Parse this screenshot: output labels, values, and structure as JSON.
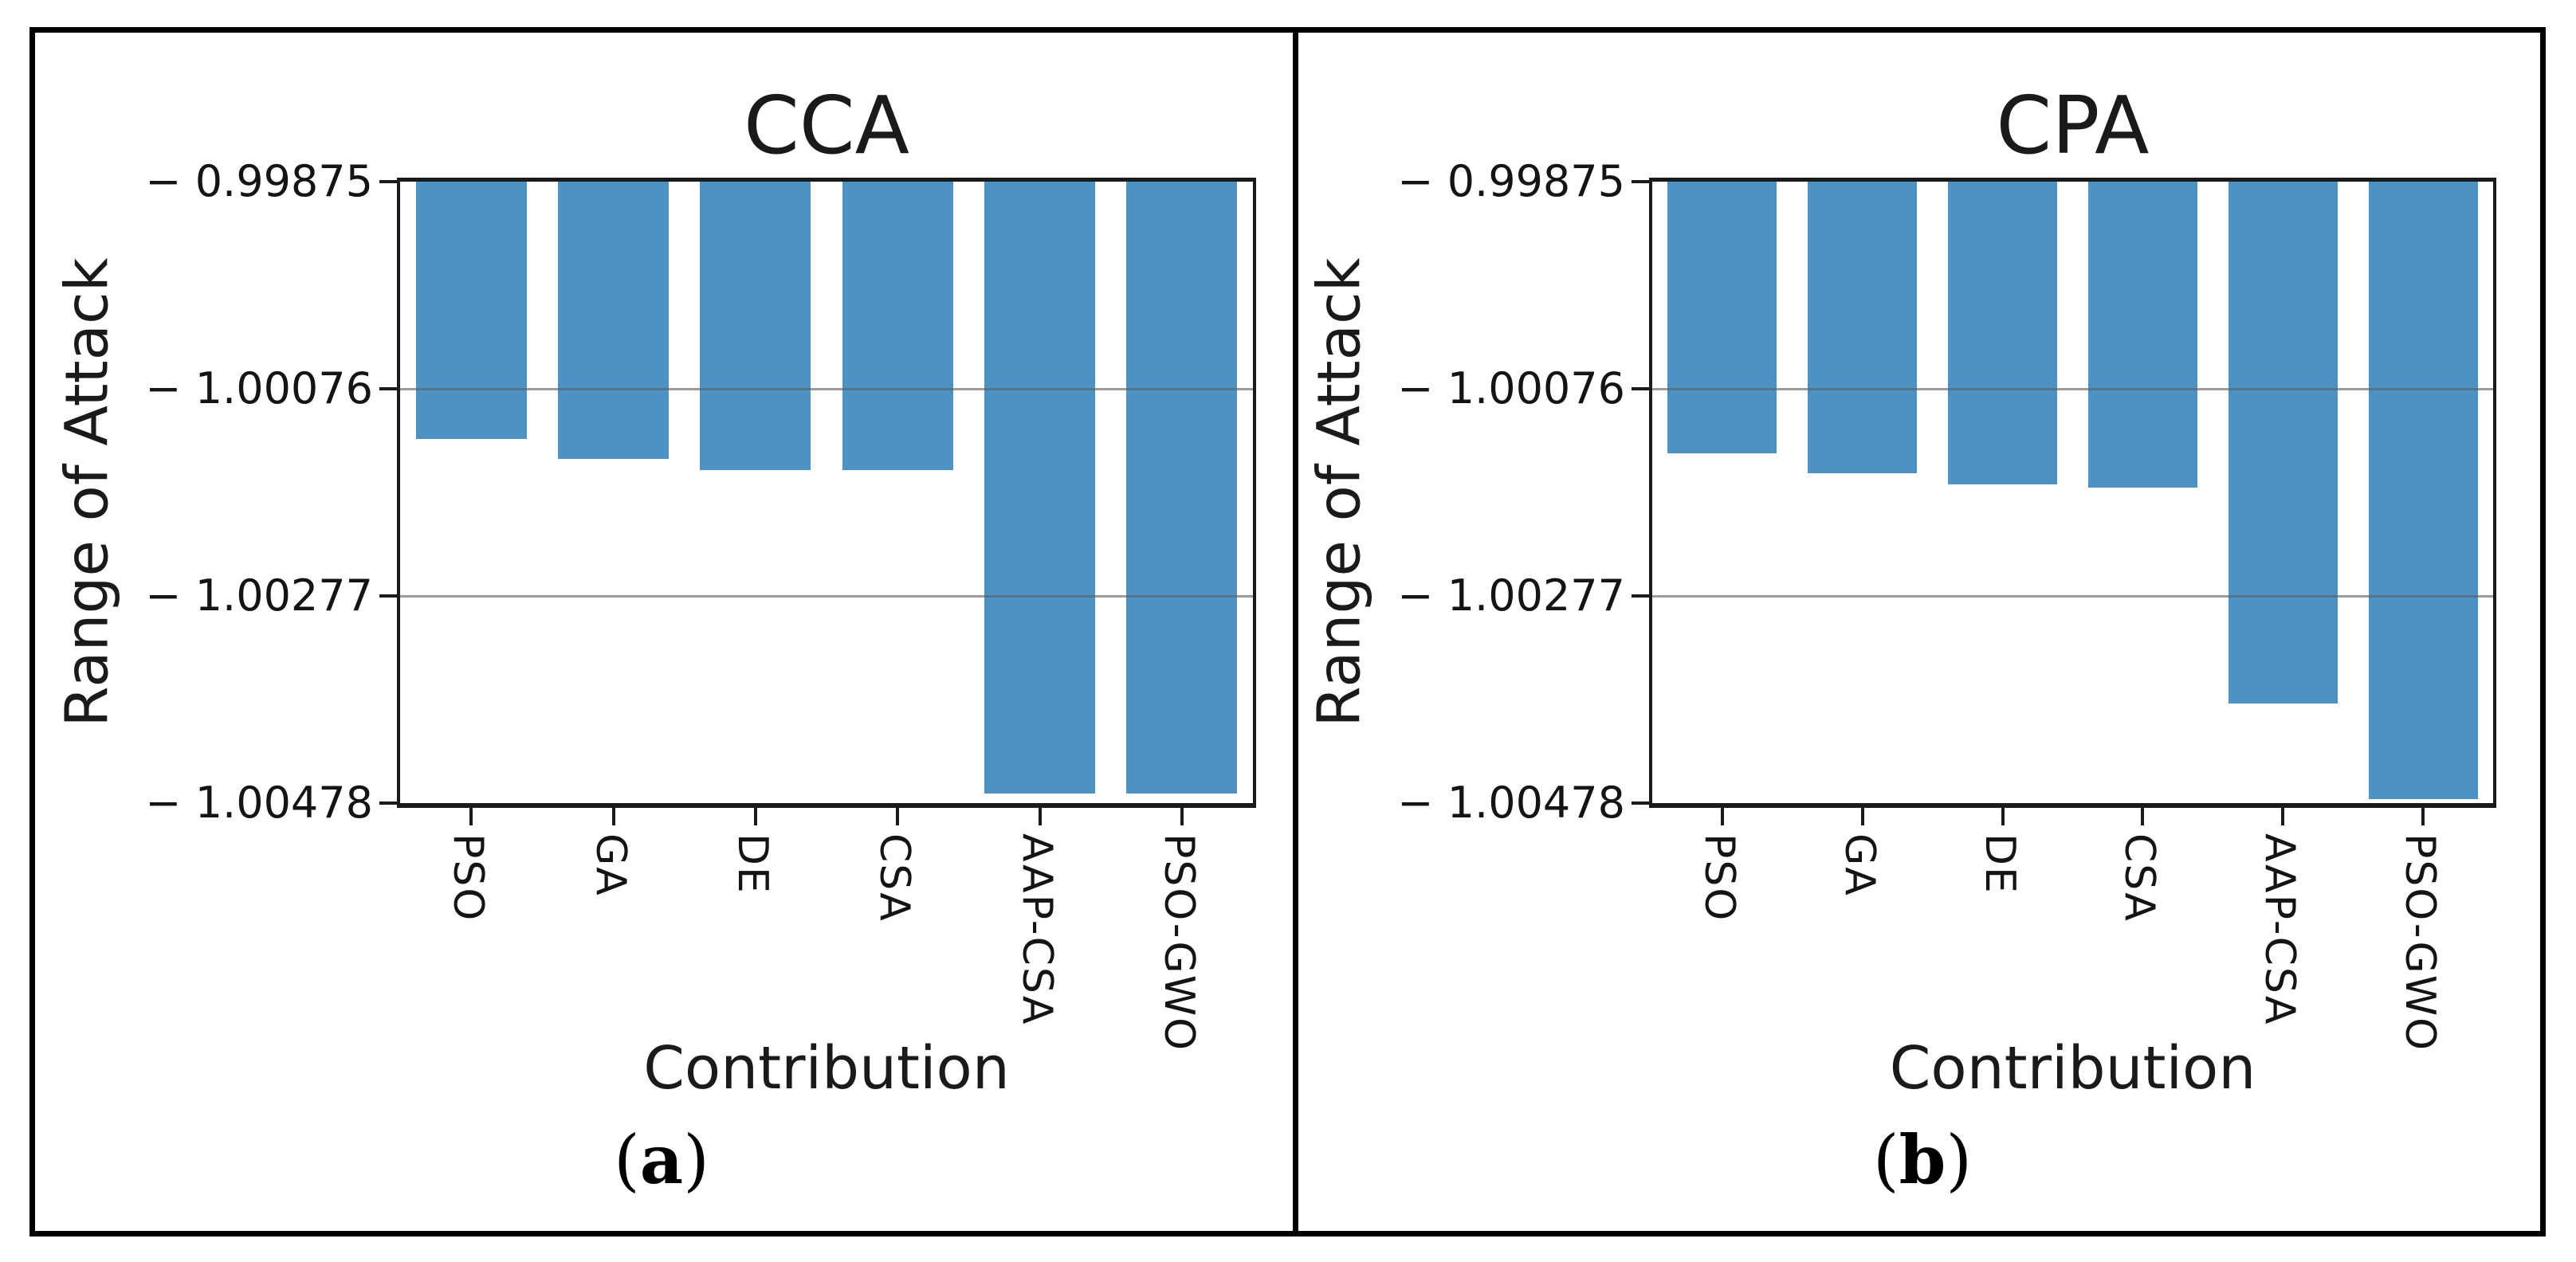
{
  "colors": {
    "bar": "#4C92C5",
    "gridline": "#8a8a8a",
    "axis": "#1a1a1a",
    "figure_border": "#000000",
    "text": "#141414"
  },
  "chart_data": [
    {
      "type": "bar",
      "title": "CCA",
      "panel_label": "(a)",
      "caption": {
        "open": "(",
        "letter": "a",
        "close": ")"
      },
      "xlabel": "Contribution",
      "ylabel": "Range of Attack",
      "categories": [
        "PSO",
        "GA",
        "DE",
        "CSA",
        "AAP-CSA",
        "PSO-GWO"
      ],
      "values": [
        -1.00125,
        -1.00144,
        -1.00155,
        -1.00155,
        -1.00469,
        -1.00469
      ],
      "bar_anchor_value": -0.99875,
      "ylim": [
        -1.00478,
        -0.99875
      ],
      "yticks": [
        -0.99875,
        -1.00076,
        -1.00277,
        -1.00478
      ],
      "ytick_labels": [
        "− 0.99875",
        "− 1.00076",
        "− 1.00277",
        "− 1.00478"
      ],
      "bar_color": "#4C92C5",
      "grid": true,
      "legend": null
    },
    {
      "type": "bar",
      "title": "CPA",
      "panel_label": "(b)",
      "caption": {
        "open": "(",
        "letter": "b",
        "close": ")"
      },
      "xlabel": "Contribution",
      "ylabel": "Range of Attack",
      "categories": [
        "PSO",
        "GA",
        "DE",
        "CSA",
        "AAP-CSA",
        "PSO-GWO"
      ],
      "values": [
        -1.00139,
        -1.00158,
        -1.00169,
        -1.00172,
        -1.00381,
        -1.00474
      ],
      "bar_anchor_value": -0.99875,
      "ylim": [
        -1.00478,
        -0.99875
      ],
      "yticks": [
        -0.99875,
        -1.00076,
        -1.00277,
        -1.00478
      ],
      "ytick_labels": [
        "− 0.99875",
        "− 1.00076",
        "− 1.00277",
        "− 1.00478"
      ],
      "bar_color": "#4C92C5",
      "grid": true,
      "legend": null
    }
  ]
}
